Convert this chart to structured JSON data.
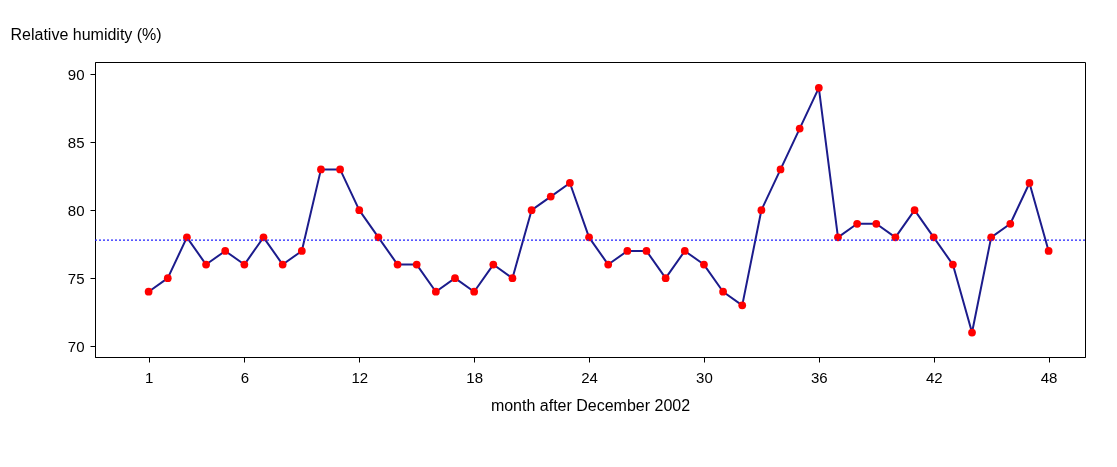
{
  "chart_data": {
    "type": "line",
    "xlabel": "month after December 2002",
    "ylabel": "Relative humidity (%)",
    "x": [
      1,
      2,
      3,
      4,
      5,
      6,
      7,
      8,
      9,
      10,
      11,
      12,
      13,
      14,
      15,
      16,
      17,
      18,
      19,
      20,
      21,
      22,
      23,
      24,
      25,
      26,
      27,
      28,
      29,
      30,
      31,
      32,
      33,
      34,
      35,
      36,
      37,
      38,
      39,
      40,
      41,
      42,
      43,
      44,
      45,
      46,
      47,
      48
    ],
    "series": [
      {
        "color": "#1c1c8c",
        "values": [
          74,
          75,
          78,
          76,
          77,
          76,
          78,
          76,
          77,
          83,
          83,
          80,
          78,
          76,
          76,
          74,
          75,
          74,
          76,
          75,
          80,
          81,
          82,
          78,
          76,
          77,
          77,
          75,
          77,
          76,
          74,
          73,
          80,
          83,
          86,
          89,
          78,
          79,
          79,
          78,
          80,
          78,
          76,
          71,
          78,
          79,
          82,
          77
        ]
      }
    ],
    "xlim": [
      -1.8,
      49.9
    ],
    "ylim": [
      69.2,
      90.9
    ],
    "xticks": [
      1,
      6,
      12,
      18,
      24,
      30,
      36,
      42,
      48
    ],
    "yticks": [
      70,
      75,
      80,
      85,
      90
    ],
    "ref_lines": [
      {
        "axis": "y",
        "value": 77.8,
        "color": "#2020ff",
        "line_style": "dotted"
      }
    ],
    "grid": false,
    "marker": "circle",
    "line_style": "solid"
  }
}
